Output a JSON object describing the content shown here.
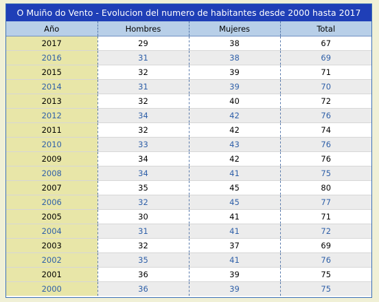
{
  "title": "O Muiño do Vento - Evolucion del numero de habitantes desde 2000 hasta 2017",
  "headers": [
    "Año",
    "Hombres",
    "Mujeres",
    "Total"
  ],
  "rows": [
    [
      "2017",
      "29",
      "38",
      "67"
    ],
    [
      "2016",
      "31",
      "38",
      "69"
    ],
    [
      "2015",
      "32",
      "39",
      "71"
    ],
    [
      "2014",
      "31",
      "39",
      "70"
    ],
    [
      "2013",
      "32",
      "40",
      "72"
    ],
    [
      "2012",
      "34",
      "42",
      "76"
    ],
    [
      "2011",
      "32",
      "42",
      "74"
    ],
    [
      "2010",
      "33",
      "43",
      "76"
    ],
    [
      "2009",
      "34",
      "42",
      "76"
    ],
    [
      "2008",
      "34",
      "41",
      "75"
    ],
    [
      "2007",
      "35",
      "45",
      "80"
    ],
    [
      "2006",
      "32",
      "45",
      "77"
    ],
    [
      "2005",
      "30",
      "41",
      "71"
    ],
    [
      "2004",
      "31",
      "41",
      "72"
    ],
    [
      "2003",
      "32",
      "37",
      "69"
    ],
    [
      "2002",
      "35",
      "41",
      "76"
    ],
    [
      "2001",
      "36",
      "39",
      "75"
    ],
    [
      "2000",
      "36",
      "39",
      "75"
    ]
  ],
  "colors": {
    "title_bg": "#1f3fb7",
    "header_bg": "#b8cfe8",
    "year_col_bg": "#e8e6a8",
    "alt_row_text": "#2e5fa8",
    "page_bg": "#f0f0d6"
  }
}
